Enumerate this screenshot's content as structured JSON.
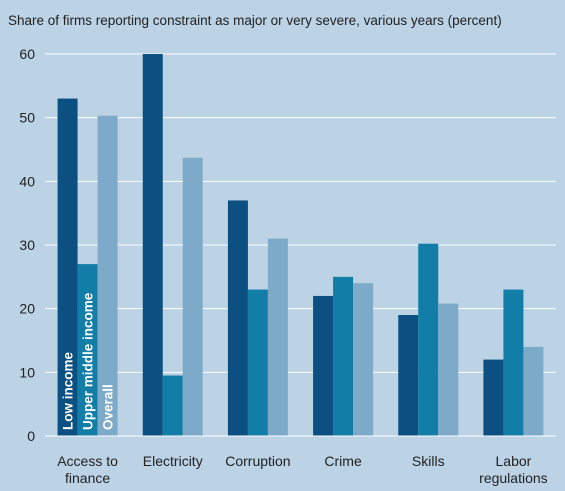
{
  "chart_data": {
    "type": "bar",
    "title": "Share of firms reporting constraint as major or very severe, various years (percent)",
    "categories": [
      "Access to finance",
      "Electricity",
      "Corruption",
      "Crime",
      "Skills",
      "Labor regulations"
    ],
    "series": [
      {
        "name": "Low income",
        "color": "#0b5080",
        "values": [
          53,
          60,
          37,
          22,
          19,
          12
        ]
      },
      {
        "name": "Upper middle income",
        "color": "#127da6",
        "values": [
          27,
          9.5,
          23,
          25,
          30.2,
          23
        ]
      },
      {
        "name": "Overall",
        "color": "#7eaac9",
        "values": [
          50.3,
          43.7,
          31,
          24,
          20.8,
          14
        ]
      }
    ],
    "ylim": [
      0,
      60
    ],
    "yticks": [
      0,
      10,
      20,
      30,
      40,
      50,
      60
    ],
    "grid": true,
    "legend": "inside"
  }
}
